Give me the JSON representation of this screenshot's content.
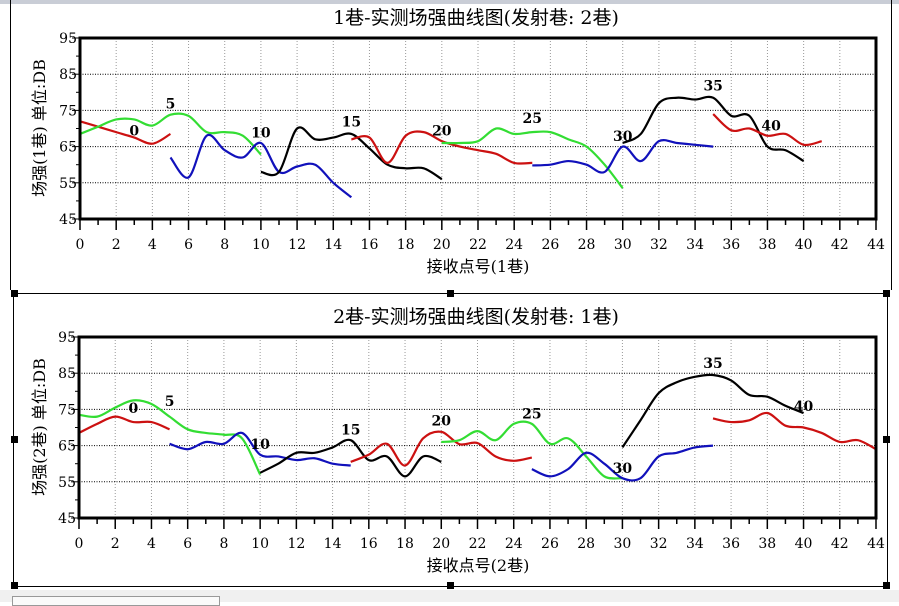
{
  "chart_data": [
    {
      "type": "line",
      "title": "1巷-实测场强曲线图(发射巷: 2巷)",
      "xlabel": "接收点号(1巷)",
      "ylabel": "场强(1巷) 单位:DB",
      "xlim": [
        0,
        44
      ],
      "ylim": [
        45,
        95
      ],
      "xticks": [
        "0",
        "2",
        "4",
        "6",
        "8",
        "10",
        "12",
        "14",
        "16",
        "18",
        "20",
        "22",
        "24",
        "26",
        "28",
        "30",
        "32",
        "34",
        "36",
        "38",
        "40",
        "42",
        "44"
      ],
      "yticks": [
        "45",
        "55",
        "65",
        "75",
        "85",
        "95"
      ],
      "grid": true,
      "series": [
        {
          "name": "0",
          "color": "#cc1111",
          "x0": 0,
          "values": [
            72,
            70.5,
            69,
            67.5,
            65.8,
            68.5
          ],
          "label_at": [
            3,
            68
          ]
        },
        {
          "name": "5",
          "color": "#33dd33",
          "x0": 0,
          "values": [
            68.5,
            70.5,
            72.5,
            72.5,
            70.8,
            73.8,
            73.5,
            69,
            69,
            68,
            62.8
          ],
          "label_at": [
            5,
            75.5
          ]
        },
        {
          "name": "10",
          "color": "#1111bb",
          "x0": 5,
          "values": [
            62,
            56.5,
            68,
            64,
            62,
            66,
            58,
            59.5,
            60,
            55,
            51
          ],
          "label_at": [
            10,
            67.5
          ]
        },
        {
          "name": "15",
          "color": "#000000",
          "x0": 10,
          "values": [
            58,
            58,
            70,
            67,
            67.5,
            68.5,
            64.5,
            60,
            59,
            59,
            56
          ],
          "label_at": [
            15,
            70.5
          ]
        },
        {
          "name": "20",
          "color": "#cc1111",
          "x0": 15,
          "values": [
            67,
            67.5,
            60.5,
            68,
            69,
            66.5,
            65,
            64,
            63,
            60.5,
            60.5
          ],
          "label_at": [
            20,
            68
          ]
        },
        {
          "name": "25",
          "color": "#33dd33",
          "x0": 20,
          "values": [
            66,
            66,
            66.5,
            70,
            68.5,
            69,
            69,
            67,
            65,
            60,
            53.5
          ],
          "label_at": [
            25,
            71.5
          ]
        },
        {
          "name": "30",
          "color": "#1111bb",
          "x0": 25,
          "values": [
            59.8,
            60,
            61,
            60,
            58,
            65,
            61,
            66.5,
            66,
            65.5,
            65
          ],
          "label_at": [
            30,
            66.5
          ]
        },
        {
          "name": "35",
          "color": "#000000",
          "x0": 30,
          "values": [
            66,
            68.5,
            77,
            78.5,
            78,
            78.5,
            73.5,
            73.5,
            65,
            64,
            61
          ],
          "label_at": [
            35,
            80.5
          ]
        },
        {
          "name": "40",
          "color": "#cc1111",
          "x0": 35,
          "values": [
            74,
            69.5,
            70,
            68,
            68.5,
            65.5,
            66.5
          ],
          "label_at": [
            38.2,
            69.5
          ]
        }
      ]
    },
    {
      "type": "line",
      "title": "2巷-实测场强曲线图(发射巷: 1巷)",
      "xlabel": "接收点号(2巷)",
      "ylabel": "场强(2巷) 单位:DB",
      "xlim": [
        0,
        44
      ],
      "ylim": [
        45,
        95
      ],
      "xticks": [
        "0",
        "2",
        "4",
        "6",
        "8",
        "10",
        "12",
        "14",
        "16",
        "18",
        "20",
        "22",
        "24",
        "26",
        "28",
        "30",
        "32",
        "34",
        "36",
        "38",
        "40",
        "42",
        "44"
      ],
      "yticks": [
        "45",
        "55",
        "65",
        "75",
        "85",
        "95"
      ],
      "grid": true,
      "series": [
        {
          "name": "0",
          "color": "#cc1111",
          "x0": 0,
          "values": [
            68.5,
            71,
            73,
            71.5,
            71.5,
            69.5
          ],
          "label_at": [
            3,
            74
          ]
        },
        {
          "name": "5",
          "color": "#33dd33",
          "x0": 0,
          "values": [
            73.5,
            73,
            75.5,
            77.5,
            76.5,
            73,
            69.5,
            68.5,
            68,
            67,
            57
          ],
          "label_at": [
            5,
            76
          ]
        },
        {
          "name": "10",
          "color": "#1111bb",
          "x0": 5,
          "values": [
            65.5,
            64,
            66,
            65.5,
            68.5,
            62.5,
            62,
            61,
            61.5,
            60,
            59.5
          ],
          "label_at": [
            10,
            64
          ]
        },
        {
          "name": "15",
          "color": "#000000",
          "x0": 10,
          "values": [
            57.5,
            60,
            63,
            63,
            64.5,
            66.5,
            61,
            62,
            56.5,
            62,
            60.5
          ],
          "label_at": [
            15,
            68
          ]
        },
        {
          "name": "20",
          "color": "#cc1111",
          "x0": 15,
          "values": [
            60.5,
            62.5,
            65.5,
            59.5,
            67,
            68.8,
            65.4,
            65.7,
            62,
            60.8,
            61.7
          ],
          "label_at": [
            20,
            70.5
          ]
        },
        {
          "name": "25",
          "color": "#33dd33",
          "x0": 20,
          "values": [
            66,
            66.5,
            69,
            66.5,
            71,
            71,
            65.5,
            67,
            62,
            56.5,
            56
          ],
          "label_at": [
            25,
            72.5
          ]
        },
        {
          "name": "30",
          "color": "#1111bb",
          "x0": 25,
          "values": [
            58.5,
            56.5,
            58.5,
            63,
            60,
            56,
            56,
            62,
            63,
            64.5,
            65
          ],
          "label_at": [
            30,
            57.5
          ]
        },
        {
          "name": "35",
          "color": "#000000",
          "x0": 30,
          "values": [
            64.5,
            72,
            79.5,
            82.5,
            84,
            84.5,
            83,
            79,
            78.5,
            76,
            74
          ],
          "label_at": [
            35,
            86.5
          ]
        },
        {
          "name": "40",
          "color": "#cc1111",
          "x0": 35,
          "values": [
            72.5,
            71.5,
            72,
            74,
            70.5,
            70,
            68.5,
            66,
            66.5,
            64
          ],
          "label_at": [
            40,
            74.5
          ]
        }
      ]
    }
  ]
}
